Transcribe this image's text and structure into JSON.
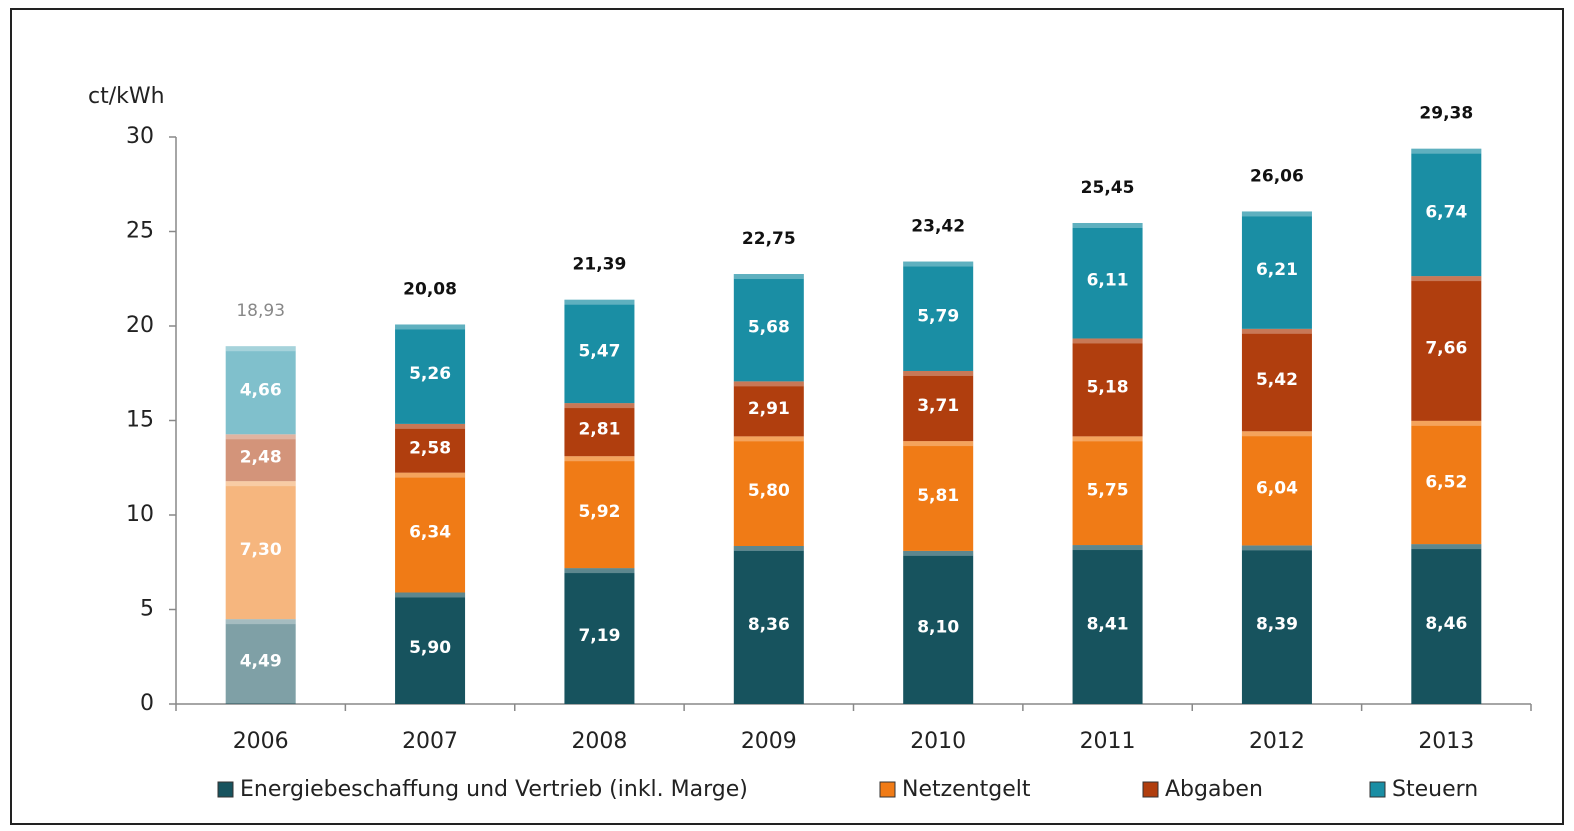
{
  "chart_data": {
    "type": "stacked_bar",
    "y_axis_label": "ct/kWh",
    "categories": [
      "2006",
      "2007",
      "2008",
      "2009",
      "2010",
      "2011",
      "2012",
      "2013"
    ],
    "dimmed": [
      true,
      false,
      false,
      false,
      false,
      false,
      false,
      false
    ],
    "series": [
      {
        "name": "Energiebeschaffung und Vertrieb (inkl. Marge)",
        "color": "#17535e",
        "values": [
          4.49,
          5.9,
          7.19,
          8.36,
          8.1,
          8.41,
          8.39,
          8.46
        ],
        "value_labels": [
          "4,49",
          "5,90",
          "7,19",
          "8,36",
          "8,10",
          "8,41",
          "8,39",
          "8,46"
        ]
      },
      {
        "name": "Netzentgelt",
        "color": "#f07b16",
        "values": [
          7.3,
          6.34,
          5.92,
          5.8,
          5.81,
          5.75,
          6.04,
          6.52
        ],
        "value_labels": [
          "7,30",
          "6,34",
          "5,92",
          "5,80",
          "5,81",
          "5,75",
          "6,04",
          "6,52"
        ]
      },
      {
        "name": "Abgaben",
        "color": "#b03e0e",
        "values": [
          2.48,
          2.58,
          2.81,
          2.91,
          3.71,
          5.18,
          5.42,
          7.66
        ],
        "value_labels": [
          "2,48",
          "2,58",
          "2,81",
          "2,91",
          "3,71",
          "5,18",
          "5,42",
          "7,66"
        ]
      },
      {
        "name": "Steuern",
        "color": "#1a8ea4",
        "values": [
          4.66,
          5.26,
          5.47,
          5.68,
          5.79,
          6.11,
          6.21,
          6.74
        ],
        "value_labels": [
          "4,66",
          "5,26",
          "5,47",
          "5,68",
          "5,79",
          "6,11",
          "6,21",
          "6,74"
        ]
      }
    ],
    "totals": [
      18.93,
      20.08,
      21.39,
      22.75,
      23.42,
      25.45,
      26.06,
      29.38
    ],
    "total_labels": [
      "18,93",
      "20,08",
      "21,39",
      "22,75",
      "23,42",
      "25,45",
      "26,06",
      "29,38"
    ],
    "ylim": [
      0,
      30
    ],
    "yticks": [
      0,
      5,
      10,
      15,
      20,
      25,
      30
    ]
  }
}
